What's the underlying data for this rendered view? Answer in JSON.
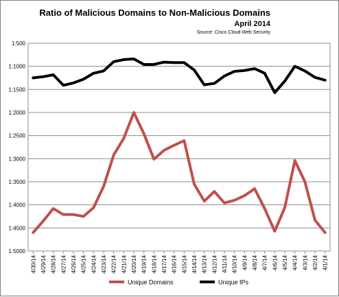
{
  "chart_data": {
    "type": "line",
    "title": "Ratio of Malicious Domains to Non-Malicious Domains",
    "subtitle": "April 2014",
    "source": "Source: Cisco Cloud Web Security",
    "xlabel": "",
    "ylabel": "",
    "y_tick_labels": [
      "1:500",
      "1:1000",
      "1:1500",
      "1:2000",
      "1:2500",
      "1:3000",
      "1:3500",
      "1:4000",
      "1:4500",
      "1:5000"
    ],
    "ylim": [
      500,
      5000
    ],
    "y_inverted": true,
    "grid": true,
    "legend_position": "bottom",
    "categories": [
      "4/30/14",
      "4/29/14",
      "4/28/14",
      "4/27/14",
      "4/26/14",
      "4/25/14",
      "4/24/14",
      "4/23/14",
      "4/22/14",
      "4/21/14",
      "4/20/14",
      "4/19/14",
      "4/18/14",
      "4/17/14",
      "4/16/14",
      "4/15/14",
      "4/14/14",
      "4/13/14",
      "4/12/14",
      "4/11/14",
      "4/10/14",
      "4/9/14",
      "4/8/14",
      "4/7/14",
      "4/6/14",
      "4/5/14",
      "4/4/14",
      "4/3/14",
      "4/2/14",
      "4/1/14"
    ],
    "series": [
      {
        "name": "Unique Domains",
        "color": "#c0504d",
        "values": [
          4600,
          4350,
          4080,
          4210,
          4210,
          4250,
          4060,
          3600,
          2920,
          2560,
          2000,
          2460,
          3010,
          2820,
          2710,
          2610,
          3550,
          3920,
          3710,
          3960,
          3900,
          3800,
          3650,
          4080,
          4570,
          4060,
          3040,
          3500,
          4330,
          4600
        ]
      },
      {
        "name": "Unique IPs",
        "color": "#000000",
        "values": [
          1250,
          1225,
          1185,
          1410,
          1360,
          1280,
          1150,
          1100,
          900,
          855,
          840,
          960,
          960,
          910,
          920,
          920,
          1080,
          1400,
          1370,
          1210,
          1110,
          1090,
          1050,
          1150,
          1570,
          1320,
          1000,
          1100,
          1240,
          1300
        ]
      }
    ]
  }
}
